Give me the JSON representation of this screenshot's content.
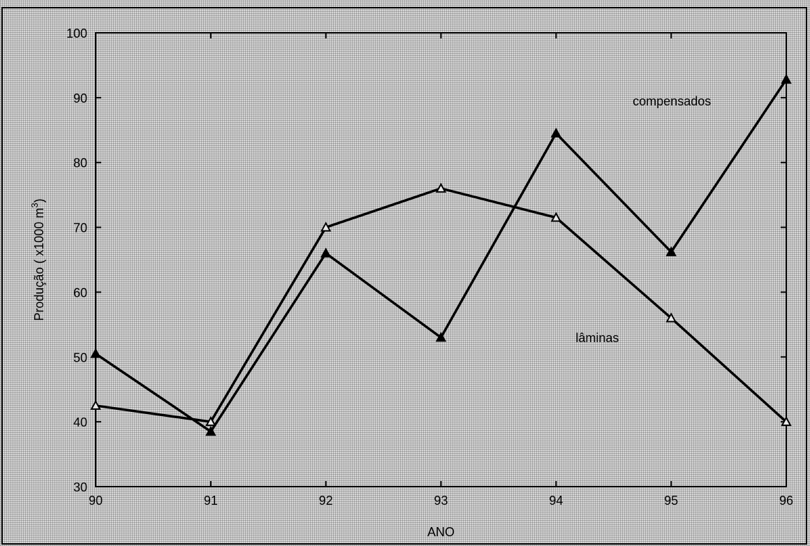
{
  "chart_data": {
    "type": "line",
    "title": "",
    "xlabel": "ANO",
    "ylabel": "Produção ( x1000 m",
    "ylabel_superscript": "3",
    "ylabel_suffix": ")",
    "x": [
      "90",
      "91",
      "92",
      "93",
      "94",
      "95",
      "96"
    ],
    "ylim": [
      30,
      100
    ],
    "yticks": [
      "30",
      "40",
      "50",
      "60",
      "70",
      "80",
      "90",
      "100"
    ],
    "grid": false,
    "series": [
      {
        "name": "compensados",
        "marker": "filled-triangle",
        "values": [
          50.5,
          38.5,
          66,
          53,
          84.5,
          66.2,
          92.8
        ]
      },
      {
        "name": "lâminas",
        "marker": "open-triangle",
        "values": [
          42.5,
          40,
          70,
          76,
          71.5,
          56,
          40
        ]
      }
    ],
    "annotations": [
      {
        "text": "compensados",
        "series": 0
      },
      {
        "text": "lâminas",
        "series": 1
      }
    ],
    "colors": {
      "line": "#000000",
      "background": "#d6d6d6"
    }
  }
}
